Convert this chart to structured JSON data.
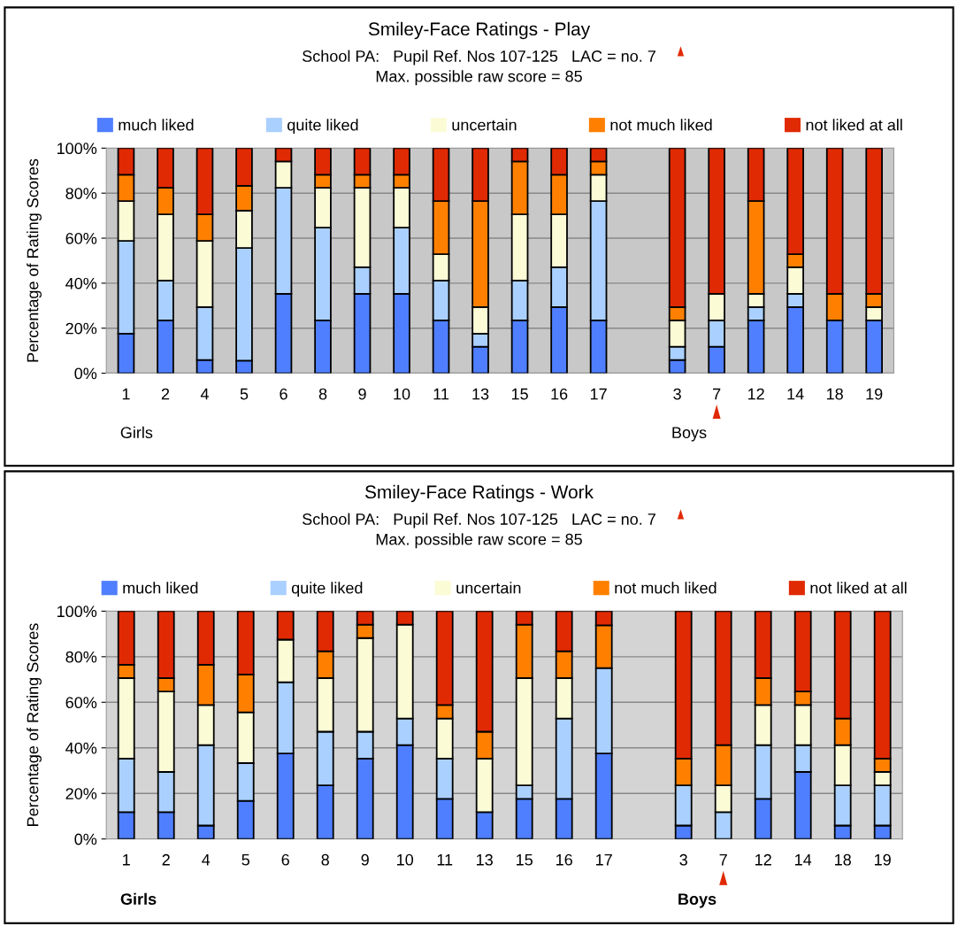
{
  "chart_data": [
    {
      "type": "bar",
      "stacked": true,
      "title": "Smiley-Face Ratings - Play",
      "subtitle": "School PA:   Pupil Ref. Nos 107-125   LAC = no. 7\nMax. possible raw score = 85",
      "ylabel": "Percentage of Rating Scores",
      "categories": [
        "1",
        "2",
        "4",
        "5",
        "6",
        "8",
        "9",
        "10",
        "11",
        "13",
        "15",
        "16",
        "17",
        null,
        "3",
        "7",
        "12",
        "14",
        "18",
        "19"
      ],
      "series": [
        {
          "name": "much liked",
          "color": "#4f7fff",
          "values": [
            17.6,
            23.5,
            5.9,
            5.6,
            35.3,
            23.5,
            35.3,
            35.3,
            23.5,
            11.8,
            23.5,
            29.4,
            23.5,
            null,
            5.9,
            11.8,
            23.5,
            29.4,
            23.5,
            23.5
          ]
        },
        {
          "name": "quite liked",
          "color": "#aad0ff",
          "values": [
            41.2,
            17.7,
            23.5,
            50.0,
            47.1,
            41.2,
            11.8,
            29.4,
            17.7,
            5.8,
            17.7,
            17.7,
            53.0,
            null,
            5.9,
            11.7,
            5.9,
            5.9,
            0,
            0
          ]
        },
        {
          "name": "uncertain",
          "color": "#fbfcd6",
          "values": [
            17.7,
            29.4,
            29.4,
            16.6,
            11.7,
            17.7,
            35.3,
            17.7,
            11.7,
            11.8,
            29.4,
            23.5,
            11.7,
            null,
            11.7,
            11.8,
            5.9,
            11.8,
            0,
            5.9
          ]
        },
        {
          "name": "not much liked",
          "color": "#ff8000",
          "values": [
            11.7,
            11.8,
            11.8,
            11.1,
            0,
            5.8,
            5.8,
            5.8,
            23.6,
            47.1,
            23.5,
            17.6,
            5.9,
            null,
            5.9,
            0,
            41.2,
            5.8,
            11.8,
            5.9
          ]
        },
        {
          "name": "not liked at all",
          "color": "#e02a04",
          "values": [
            11.8,
            17.6,
            29.4,
            16.7,
            5.9,
            11.8,
            11.8,
            11.8,
            23.5,
            23.5,
            5.9,
            11.8,
            5.9,
            null,
            70.6,
            64.7,
            23.5,
            47.1,
            64.7,
            64.7
          ]
        }
      ],
      "ylim": [
        0,
        100
      ],
      "yticks": [
        {
          "value": 0,
          "label": "0%"
        },
        {
          "value": 20,
          "label": "20%"
        },
        {
          "value": 40,
          "label": "40%"
        },
        {
          "value": 60,
          "label": "60%"
        },
        {
          "value": 80,
          "label": "80%"
        },
        {
          "value": 100,
          "label": "100%"
        }
      ],
      "grid": "y",
      "legend": "top",
      "annotations": [
        "Girls",
        "Boys"
      ]
    },
    {
      "type": "bar",
      "stacked": true,
      "title": "Smiley-Face Ratings - Work",
      "subtitle": "School PA:   Pupil Ref. Nos 107-125   LAC = no. 7\nMax. possible raw score = 85",
      "ylabel": "Percentage of Rating Scores",
      "categories": [
        "1",
        "2",
        "4",
        "5",
        "6",
        "8",
        "9",
        "10",
        "11",
        "13",
        "15",
        "16",
        "17",
        null,
        "3",
        "7",
        "12",
        "14",
        "18",
        "19"
      ],
      "series": [
        {
          "name": "much liked",
          "color": "#4f7fff",
          "values": [
            11.8,
            11.8,
            5.9,
            16.7,
            37.5,
            23.5,
            35.3,
            41.2,
            17.6,
            11.8,
            17.6,
            17.6,
            37.5,
            null,
            5.9,
            0,
            17.6,
            29.4,
            5.9,
            5.9
          ]
        },
        {
          "name": "quite liked",
          "color": "#aad0ff",
          "values": [
            23.5,
            17.6,
            35.3,
            16.6,
            31.3,
            23.6,
            11.8,
            11.7,
            17.7,
            0,
            5.9,
            35.3,
            37.5,
            null,
            17.6,
            11.8,
            23.6,
            11.8,
            17.6,
            17.6
          ]
        },
        {
          "name": "uncertain",
          "color": "#fbfcd6",
          "values": [
            35.3,
            35.3,
            17.6,
            22.3,
            18.7,
            23.5,
            41.1,
            41.2,
            17.6,
            23.5,
            47.1,
            17.7,
            0,
            null,
            0,
            11.7,
            17.6,
            17.6,
            17.7,
            5.9
          ]
        },
        {
          "name": "not much liked",
          "color": "#ff8000",
          "values": [
            5.9,
            5.9,
            17.7,
            16.6,
            0,
            11.8,
            5.9,
            0,
            5.9,
            11.8,
            23.5,
            11.8,
            18.8,
            null,
            11.8,
            17.7,
            11.8,
            5.9,
            11.7,
            5.9
          ]
        },
        {
          "name": "not liked at all",
          "color": "#e02a04",
          "values": [
            23.5,
            29.4,
            23.5,
            27.8,
            12.5,
            17.6,
            5.9,
            5.9,
            41.2,
            52.9,
            5.9,
            17.6,
            6.2,
            null,
            64.7,
            58.8,
            29.4,
            35.3,
            47.1,
            64.7
          ]
        }
      ],
      "ylim": [
        0,
        100
      ],
      "yticks": [
        {
          "value": 0,
          "label": "0%"
        },
        {
          "value": 20,
          "label": "20%"
        },
        {
          "value": 40,
          "label": "40%"
        },
        {
          "value": 60,
          "label": "60%"
        },
        {
          "value": 80,
          "label": "80%"
        },
        {
          "value": 100,
          "label": "100%"
        }
      ],
      "grid": "y",
      "legend": "top",
      "annotations": [
        "Girls",
        "Boys"
      ]
    }
  ]
}
